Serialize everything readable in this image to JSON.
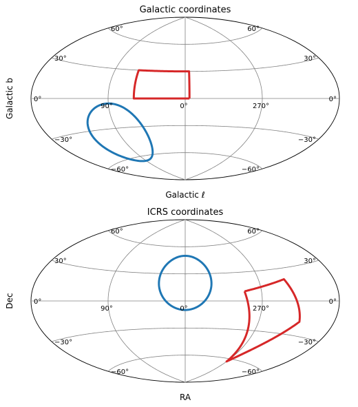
{
  "chart_data": [
    {
      "type": "line",
      "projection": "aitoff",
      "title": "Galactic coordinates",
      "xlabel": "Galactic ℓ",
      "ylabel": "Galactic b",
      "lon_tick_labels": [
        {
          "lon": 90,
          "text": "90°"
        },
        {
          "lon": 0,
          "text": "0°"
        },
        {
          "lon": 270,
          "text": "270°"
        }
      ],
      "lat_tick_labels": [
        {
          "lat": 60,
          "text": "60°"
        },
        {
          "lat": 30,
          "text": "30°"
        },
        {
          "lat": 0,
          "text": "0°"
        },
        {
          "lat": -30,
          "text": "−30°"
        },
        {
          "lat": -60,
          "text": "−60°"
        }
      ],
      "colors": {
        "blue": "#1f77b4",
        "red": "#d62728",
        "grid": "#808080"
      },
      "series": [
        {
          "role": "quadrangle",
          "color": "#d62728",
          "lon": [
            355,
            355,
            60,
            60,
            355
          ],
          "lat": [
            0,
            30,
            30,
            0,
            0
          ]
        },
        {
          "role": "circle",
          "color": "#1f77b4",
          "center": [
            90,
            -35
          ],
          "radius": 30
        }
      ]
    },
    {
      "type": "line",
      "projection": "aitoff",
      "title": "ICRS coordinates",
      "xlabel": "RA",
      "ylabel": "Dec",
      "lon_tick_labels": [
        {
          "lon": 90,
          "text": "90°"
        },
        {
          "lon": 0,
          "text": "0°"
        },
        {
          "lon": 270,
          "text": "270°"
        }
      ],
      "lat_tick_labels": [
        {
          "lat": 60,
          "text": "60°"
        },
        {
          "lat": 30,
          "text": "30°"
        },
        {
          "lat": 0,
          "text": "0°"
        },
        {
          "lat": -30,
          "text": "−30°"
        },
        {
          "lat": -60,
          "text": "−60°"
        }
      ],
      "colors": {
        "blue": "#1f77b4",
        "red": "#d62728",
        "grid": "#808080"
      },
      "series": [
        {
          "role": "circle",
          "color": "#1f77b4",
          "center": [
            0,
            20
          ],
          "radius": 30
        },
        {
          "role": "quadrangle",
          "color": "#d62728",
          "lon": [
            290,
            270,
            221,
            239,
            290
          ],
          "lat": [
            10,
            -63,
            -18,
            20,
            10
          ]
        }
      ]
    }
  ]
}
